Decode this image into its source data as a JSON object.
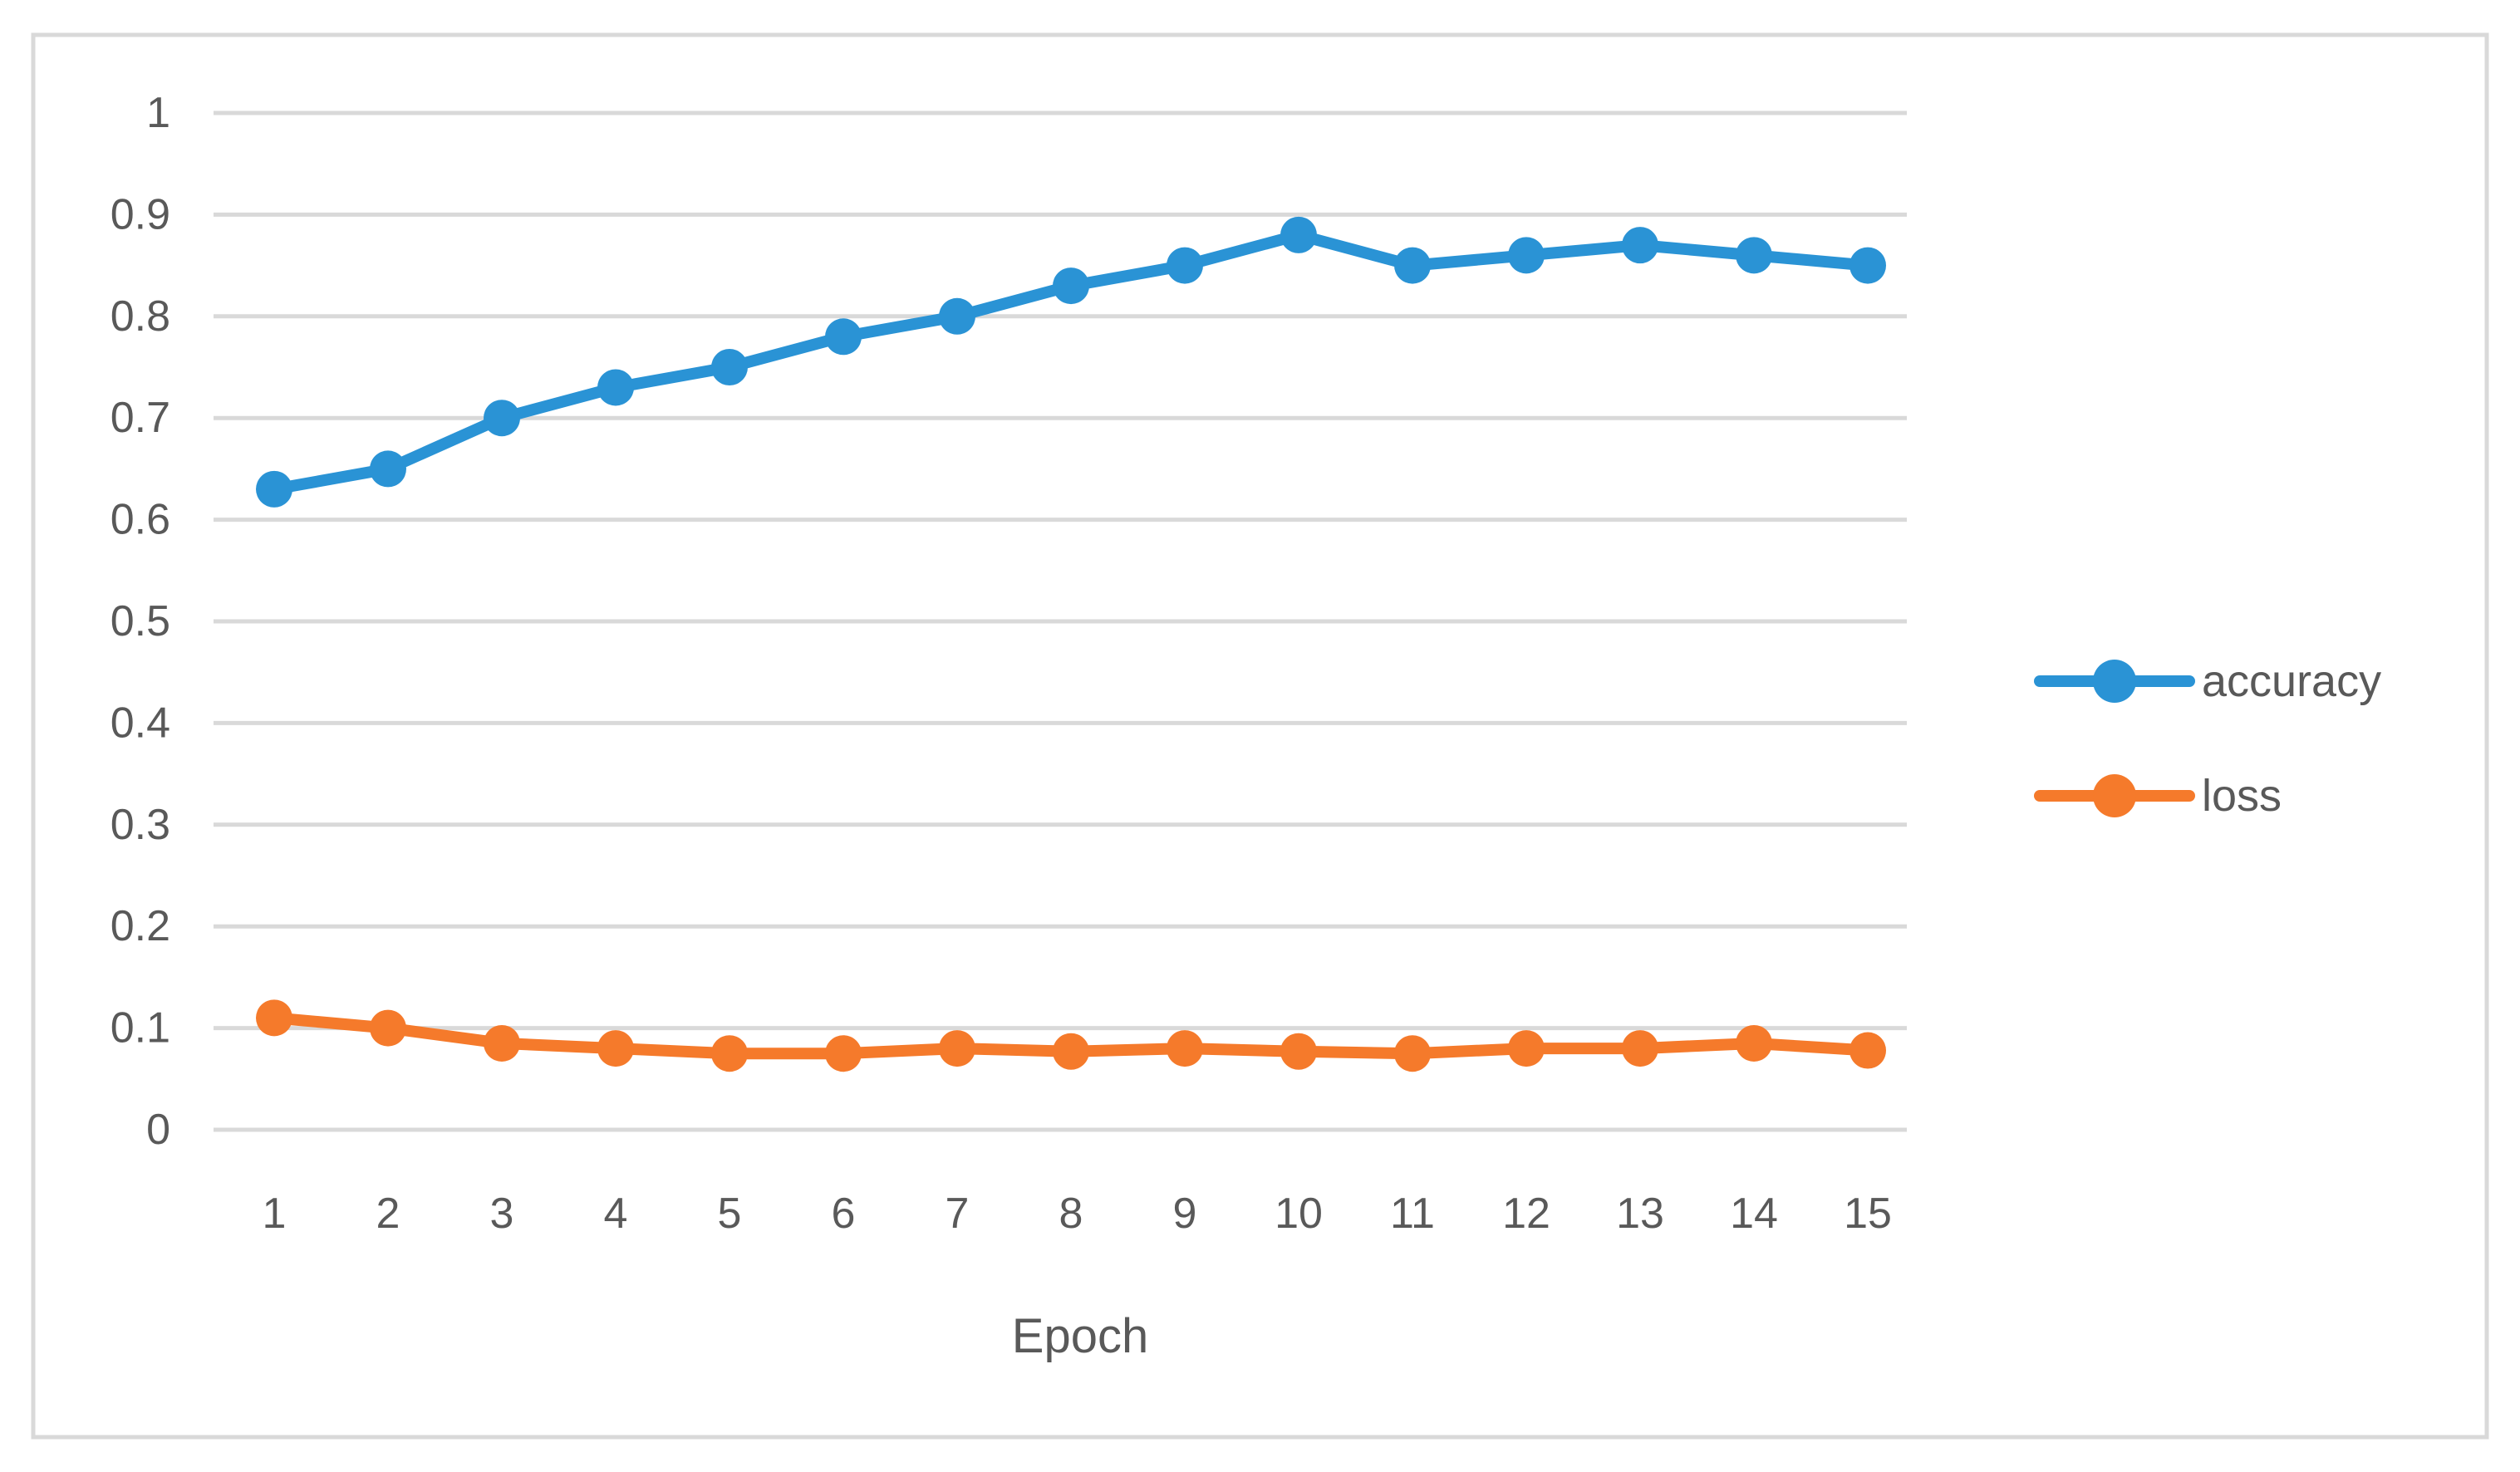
{
  "chart_data": {
    "type": "line",
    "title": "",
    "xlabel": "Epoch",
    "ylabel": "",
    "x": [
      1,
      2,
      3,
      4,
      5,
      6,
      7,
      8,
      9,
      10,
      11,
      12,
      13,
      14,
      15
    ],
    "x_tick_labels": [
      "1",
      "2",
      "3",
      "4",
      "5",
      "6",
      "7",
      "8",
      "9",
      "10",
      "11",
      "12",
      "13",
      "14",
      "15"
    ],
    "series": [
      {
        "name": "accuracy",
        "color": "#2A93D5",
        "values": [
          0.63,
          0.65,
          0.7,
          0.73,
          0.75,
          0.78,
          0.8,
          0.83,
          0.85,
          0.88,
          0.85,
          0.86,
          0.87,
          0.86,
          0.85
        ]
      },
      {
        "name": "loss",
        "color": "#F57A2B",
        "values": [
          0.11,
          0.1,
          0.085,
          0.08,
          0.075,
          0.075,
          0.08,
          0.077,
          0.08,
          0.077,
          0.075,
          0.08,
          0.08,
          0.085,
          0.078
        ]
      }
    ],
    "ylim": [
      0,
      1
    ],
    "yticks": [
      0,
      0.1,
      0.2,
      0.3,
      0.4,
      0.5,
      0.6,
      0.7,
      0.8,
      0.9,
      1
    ],
    "y_tick_labels": [
      "0",
      "0.1",
      "0.2",
      "0.3",
      "0.4",
      "0.5",
      "0.6",
      "0.7",
      "0.8",
      "0.9",
      "1"
    ],
    "grid": "horizontal",
    "legend_position": "right",
    "legend": [
      "accuracy",
      "loss"
    ],
    "colors": {
      "background": "#FFFFFF",
      "frame_border": "#D9D9D9",
      "gridline": "#D9D9D9",
      "axis_text": "#595959"
    }
  }
}
